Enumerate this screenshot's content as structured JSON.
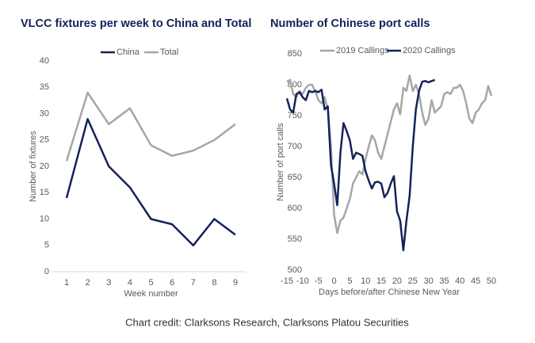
{
  "chart_data": [
    {
      "type": "line",
      "title": "VLCC fixtures per week to China and Total",
      "categories": [
        "1",
        "2",
        "3",
        "4",
        "5",
        "6",
        "7",
        "8",
        "9"
      ],
      "x_label": "Week number",
      "y_label": "Number of fixtures",
      "ylim": [
        0,
        40
      ],
      "yticks": [
        0,
        5,
        10,
        15,
        20,
        25,
        30,
        35,
        40
      ],
      "series": [
        {
          "name": "China",
          "color": "#13225a",
          "values": [
            14,
            29,
            20,
            16,
            10,
            9,
            5,
            10,
            7
          ]
        },
        {
          "name": "Total",
          "color": "#a6a6a6",
          "values": [
            21,
            34,
            28,
            31,
            24,
            22,
            23,
            25,
            28
          ]
        }
      ]
    },
    {
      "type": "line",
      "title": "Number of Chinese port calls",
      "x_label": "Days before/after Chinese New Year",
      "y_label": "Number of port calls",
      "x": [
        -15,
        -14,
        -13,
        -12,
        -11,
        -10,
        -9,
        -8,
        -7,
        -6,
        -5,
        -4,
        -3,
        -2,
        -1,
        0,
        1,
        2,
        3,
        4,
        5,
        6,
        7,
        8,
        9,
        10,
        11,
        12,
        13,
        14,
        15,
        16,
        17,
        18,
        19,
        20,
        21,
        22,
        23,
        24,
        25,
        26,
        27,
        28,
        29,
        30,
        31,
        32,
        33,
        34,
        35,
        36,
        37,
        38,
        39,
        40,
        41,
        42,
        43,
        44,
        45,
        46,
        47,
        48,
        49,
        50
      ],
      "xlim": [
        -15,
        50
      ],
      "xticks": [
        -15,
        -10,
        -5,
        0,
        5,
        10,
        15,
        20,
        25,
        30,
        35,
        40,
        45,
        50
      ],
      "ylim": [
        500,
        850
      ],
      "yticks": [
        500,
        550,
        600,
        650,
        700,
        750,
        800,
        850
      ],
      "series": [
        {
          "name": "2019 Callings",
          "color": "#a6a6a6",
          "values": [
            805,
            808,
            785,
            780,
            790,
            785,
            795,
            800,
            800,
            790,
            775,
            770,
            780,
            760,
            700,
            590,
            560,
            580,
            585,
            600,
            615,
            640,
            650,
            660,
            655,
            680,
            700,
            718,
            710,
            690,
            680,
            700,
            720,
            740,
            760,
            770,
            752,
            795,
            790,
            815,
            790,
            800,
            785,
            755,
            735,
            745,
            775,
            755,
            760,
            765,
            785,
            788,
            785,
            795,
            795,
            800,
            790,
            770,
            745,
            738,
            755,
            760,
            770,
            775,
            798,
            782
          ]
        },
        {
          "name": "2020 Callings",
          "color": "#13225a",
          "values": [
            778,
            760,
            755,
            785,
            788,
            780,
            775,
            790,
            788,
            790,
            788,
            792,
            760,
            765,
            670,
            640,
            605,
            690,
            738,
            725,
            710,
            680,
            690,
            688,
            685,
            660,
            645,
            632,
            642,
            643,
            640,
            618,
            625,
            640,
            652,
            595,
            580,
            532,
            580,
            620,
            700,
            760,
            790,
            805,
            806,
            804,
            806,
            808,
            null,
            null,
            null,
            null,
            null,
            null,
            null,
            null,
            null,
            null,
            null,
            null,
            null,
            null,
            null,
            null,
            null,
            null
          ]
        }
      ]
    }
  ],
  "caption": "Chart credit: Clarksons Research, Clarksons Platou Securities"
}
